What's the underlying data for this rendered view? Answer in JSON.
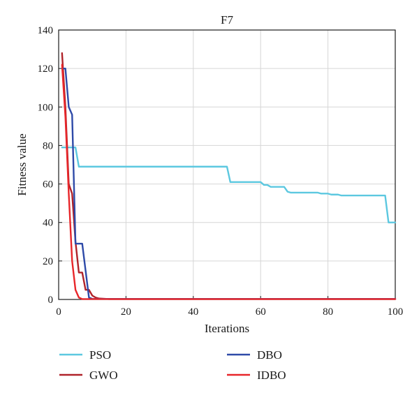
{
  "chart_data": {
    "type": "line",
    "title": "F7",
    "xlabel": "Iterations",
    "ylabel": "Fitness value",
    "xlim": [
      0,
      100
    ],
    "ylim": [
      0,
      140
    ],
    "xticks": [
      0,
      20,
      40,
      60,
      80,
      100
    ],
    "yticks": [
      0,
      20,
      40,
      60,
      80,
      100,
      120,
      140
    ],
    "grid": true,
    "legend_position": "below",
    "series": [
      {
        "name": "PSO",
        "color": "#5cc8e0",
        "points": [
          [
            1,
            79
          ],
          [
            5,
            79
          ],
          [
            6,
            69
          ],
          [
            50,
            69
          ],
          [
            51,
            61
          ],
          [
            60,
            61
          ],
          [
            61,
            59.5
          ],
          [
            62,
            59.5
          ],
          [
            63,
            58.5
          ],
          [
            67,
            58.5
          ],
          [
            68,
            56
          ],
          [
            69,
            55.5
          ],
          [
            77,
            55.5
          ],
          [
            78,
            55
          ],
          [
            80,
            55
          ],
          [
            81,
            54.5
          ],
          [
            83,
            54.5
          ],
          [
            84,
            54
          ],
          [
            97,
            54
          ],
          [
            98,
            40
          ],
          [
            100,
            40
          ]
        ]
      },
      {
        "name": "GWO",
        "color": "#b0232a",
        "points": [
          [
            1,
            128
          ],
          [
            2,
            100
          ],
          [
            3,
            60
          ],
          [
            4,
            55
          ],
          [
            5,
            30
          ],
          [
            6,
            14
          ],
          [
            7,
            14
          ],
          [
            8,
            5
          ],
          [
            9,
            5
          ],
          [
            10,
            2
          ],
          [
            11,
            1
          ],
          [
            12,
            0.5
          ],
          [
            15,
            0.2
          ],
          [
            100,
            0.2
          ]
        ]
      },
      {
        "name": "DBO",
        "color": "#2e4aa8",
        "points": [
          [
            1,
            120
          ],
          [
            2,
            120
          ],
          [
            3,
            100
          ],
          [
            4,
            96
          ],
          [
            5,
            29
          ],
          [
            7,
            29
          ],
          [
            8,
            15
          ],
          [
            9,
            1
          ],
          [
            10,
            0.3
          ],
          [
            100,
            0.3
          ]
        ]
      },
      {
        "name": "IDBO",
        "color": "#e8262a",
        "points": [
          [
            1,
            122
          ],
          [
            2,
            95
          ],
          [
            3,
            55
          ],
          [
            4,
            20
          ],
          [
            5,
            5
          ],
          [
            6,
            1
          ],
          [
            7,
            0.2
          ],
          [
            100,
            0.2
          ]
        ]
      }
    ]
  }
}
